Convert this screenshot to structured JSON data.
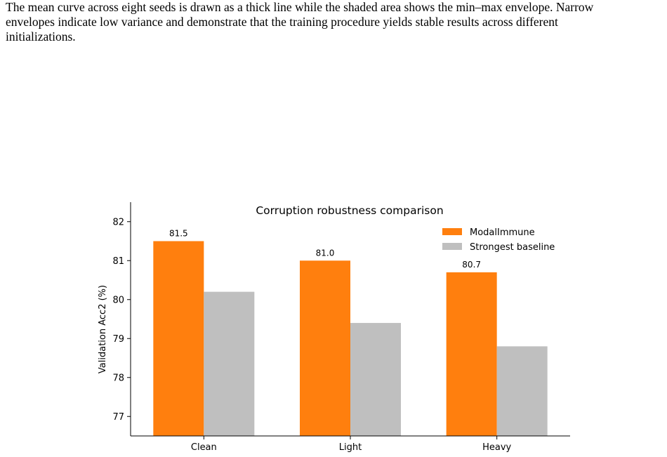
{
  "caption": {
    "line1": "The mean curve across eight seeds is drawn as a thick line while the shaded area shows the min–max envelope. Narrow",
    "line2": "envelopes indicate low variance and demonstrate that the training procedure yields stable results across different",
    "line3": "initializations."
  },
  "chart_data": {
    "type": "bar",
    "title": "Corruption robustness comparison",
    "xlabel": "",
    "ylabel": "Validation Acc2 (%)",
    "categories": [
      "Clean",
      "Light",
      "Heavy"
    ],
    "ylim": [
      76.5,
      82.5
    ],
    "yticks": [
      77,
      78,
      79,
      80,
      81,
      82
    ],
    "grid": false,
    "legend_position": "top-right",
    "series": [
      {
        "name": "ModalImmune",
        "values": [
          81.5,
          81.0,
          80.7
        ],
        "color": "#ff7f0e",
        "data_labels": [
          "81.5",
          "81.0",
          "80.7"
        ]
      },
      {
        "name": "Strongest baseline",
        "values": [
          80.2,
          79.4,
          78.8
        ],
        "color": "#bfbfbf"
      }
    ]
  }
}
